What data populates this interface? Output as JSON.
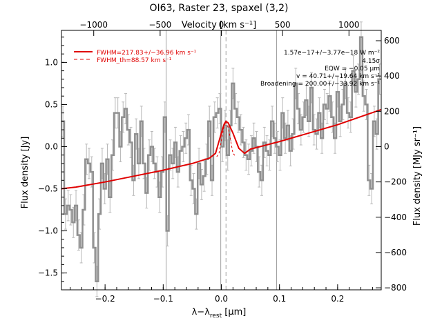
{
  "chart_data": {
    "type": "line",
    "title": "OI63, Raster 23, spaxel (3,2)",
    "xlabel": "λ−λ",
    "xlabel_sub": "rest",
    "xlabel_unit": " [μm]",
    "ylabel": "Flux density [Jy]",
    "top_axis_label": "Velocity [km s⁻¹]",
    "right_axis_label": "Flux density [MJy sr⁻¹]",
    "xlim": [
      -0.275,
      0.275
    ],
    "ylim": [
      -1.7,
      1.38
    ],
    "xticks": [
      -0.2,
      -0.1,
      0.0,
      0.1,
      0.2
    ],
    "xtick_labels": [
      "−0.2",
      "−0.1",
      "0.0",
      "0.1",
      "0.2"
    ],
    "yticks": [
      -1.5,
      -1.0,
      -0.5,
      0.0,
      0.5,
      1.0
    ],
    "ytick_labels": [
      "−1.5",
      "−1.0",
      "−0.5",
      "0.0",
      "0.5",
      "1.0"
    ],
    "top_ticks_um": [
      -0.2195,
      -0.1053,
      0.0,
      0.1053,
      0.2195
    ],
    "top_tick_labels": [
      "−1000",
      "−500",
      "0",
      "500",
      "1000"
    ],
    "right_ticks_y": [
      -1.676,
      -1.257,
      -0.838,
      -0.419,
      0.0,
      0.419,
      0.838,
      1.257
    ],
    "right_tick_labels": [
      "−800",
      "−600",
      "−400",
      "−200",
      "0",
      "200",
      "400",
      "600"
    ],
    "vertical_lines": [
      -0.095,
      -0.001,
      0.095
    ],
    "line_center": 0.008,
    "series": [
      {
        "name": "",
        "style": "step-errorbar",
        "color": "#909090",
        "x": [
          -0.2725,
          -0.268,
          -0.2635,
          -0.259,
          -0.2545,
          -0.25,
          -0.2455,
          -0.241,
          -0.2365,
          -0.232,
          -0.2275,
          -0.223,
          -0.2185,
          -0.214,
          -0.2095,
          -0.205,
          -0.2005,
          -0.196,
          -0.1915,
          -0.187,
          -0.1825,
          -0.178,
          -0.1735,
          -0.169,
          -0.1645,
          -0.16,
          -0.1555,
          -0.151,
          -0.1465,
          -0.142,
          -0.1375,
          -0.133,
          -0.1285,
          -0.124,
          -0.1195,
          -0.115,
          -0.1105,
          -0.106,
          -0.1015,
          -0.097,
          -0.0925,
          -0.088,
          -0.0835,
          -0.079,
          -0.0745,
          -0.07,
          -0.0655,
          -0.061,
          -0.0565,
          -0.052,
          -0.0475,
          -0.043,
          -0.0385,
          -0.034,
          -0.0295,
          -0.025,
          -0.0205,
          -0.016,
          -0.0115,
          -0.007,
          -0.0025,
          0.002,
          0.0065,
          0.011,
          0.0155,
          0.02,
          0.0245,
          0.029,
          0.0335,
          0.038,
          0.0425,
          0.047,
          0.0515,
          0.056,
          0.0605,
          0.065,
          0.0695,
          0.074,
          0.0785,
          0.083,
          0.0875,
          0.092,
          0.0965,
          0.101,
          0.1055,
          0.11,
          0.1145,
          0.119,
          0.1235,
          0.128,
          0.1325,
          0.137,
          0.1415,
          0.146,
          0.1505,
          0.155,
          0.1595,
          0.164,
          0.1685,
          0.173,
          0.1775,
          0.182,
          0.1865,
          0.191,
          0.1955,
          0.2,
          0.2045,
          0.209,
          0.2135,
          0.218,
          0.2225,
          0.227,
          0.2315,
          0.236,
          0.2405,
          0.245,
          0.2495,
          0.254,
          0.2585,
          0.263,
          0.2675,
          0.272
        ],
        "values": [
          0.3,
          -0.8,
          -0.7,
          -0.75,
          -0.9,
          -0.7,
          -1.05,
          -1.2,
          -0.75,
          -0.15,
          -0.2,
          -0.3,
          -1.2,
          -1.6,
          -0.8,
          -0.2,
          -0.5,
          -0.15,
          -0.6,
          -0.1,
          0.4,
          0.4,
          0.0,
          0.35,
          0.45,
          0.2,
          0.05,
          -0.4,
          0.15,
          -0.2,
          0.3,
          -0.2,
          -0.55,
          -0.1,
          0.0,
          -0.2,
          -0.3,
          -0.6,
          -0.3,
          0.35,
          -1.0,
          -0.1,
          -0.2,
          0.05,
          -0.3,
          -0.05,
          0.0,
          0.1,
          0.2,
          -0.4,
          -0.5,
          -0.8,
          -0.2,
          -0.45,
          -0.35,
          -0.15,
          0.3,
          -0.4,
          0.35,
          0.4,
          0.45,
          0.0,
          0.25,
          -0.1,
          0.25,
          0.75,
          0.45,
          0.35,
          0.2,
          0.05,
          -0.1,
          -0.15,
          -0.05,
          0.1,
          0.0,
          -0.3,
          -0.4,
          0.05,
          -0.05,
          -0.1,
          0.3,
          0.1,
          0.0,
          -0.1,
          0.4,
          0.1,
          0.25,
          -0.05,
          0.15,
          0.75,
          0.45,
          0.2,
          0.35,
          0.55,
          0.3,
          0.7,
          0.2,
          0.15,
          0.4,
          0.1,
          0.5,
          0.45,
          0.6,
          0.35,
          0.1,
          0.65,
          0.3,
          0.5,
          0.75,
          0.4,
          0.35,
          0.9,
          0.65,
          0.8,
          1.3,
          0.6,
          0.5,
          -0.4,
          -0.5,
          0.3,
          0.15,
          0.8
        ],
        "errors": [
          0.18,
          0.18,
          0.18,
          0.18,
          0.18,
          0.18,
          0.18,
          0.18,
          0.18,
          0.18,
          0.18,
          0.18,
          0.18,
          0.18,
          0.18,
          0.18,
          0.18,
          0.18,
          0.18,
          0.18,
          0.18,
          0.18,
          0.18,
          0.18,
          0.18,
          0.18,
          0.18,
          0.18,
          0.18,
          0.18,
          0.18,
          0.18,
          0.18,
          0.18,
          0.18,
          0.18,
          0.18,
          0.18,
          0.18,
          0.18,
          0.18,
          0.18,
          0.18,
          0.18,
          0.18,
          0.18,
          0.18,
          0.18,
          0.18,
          0.18,
          0.18,
          0.18,
          0.18,
          0.18,
          0.18,
          0.18,
          0.18,
          0.18,
          0.18,
          0.18,
          0.18,
          0.18,
          0.18,
          0.18,
          0.18,
          0.18,
          0.18,
          0.18,
          0.18,
          0.18,
          0.18,
          0.18,
          0.18,
          0.18,
          0.18,
          0.18,
          0.18,
          0.18,
          0.18,
          0.18,
          0.18,
          0.18,
          0.18,
          0.18,
          0.18,
          0.18,
          0.18,
          0.18,
          0.18,
          0.18,
          0.18,
          0.18,
          0.18,
          0.18,
          0.18,
          0.18,
          0.18,
          0.18,
          0.18,
          0.18,
          0.18,
          0.18,
          0.18,
          0.18,
          0.18,
          0.18,
          0.18,
          0.18,
          0.18,
          0.18,
          0.18,
          0.18,
          0.18,
          0.18,
          0.18,
          0.18,
          0.18,
          0.18,
          0.18,
          0.18,
          0.18,
          0.18
        ]
      },
      {
        "name": "FWHM=217.83+/−36.96 km s⁻¹",
        "style": "solid",
        "color": "#e00000",
        "x": [
          -0.275,
          -0.25,
          -0.2,
          -0.15,
          -0.1,
          -0.05,
          -0.02,
          -0.01,
          0.0,
          0.005,
          0.008,
          0.012,
          0.02,
          0.03,
          0.04,
          0.05,
          0.1,
          0.15,
          0.2,
          0.25,
          0.275
        ],
        "values": [
          -0.5,
          -0.48,
          -0.42,
          -0.35,
          -0.28,
          -0.2,
          -0.135,
          -0.08,
          0.16,
          0.27,
          0.3,
          0.28,
          0.16,
          -0.02,
          -0.08,
          -0.03,
          0.06,
          0.16,
          0.26,
          0.38,
          0.44
        ]
      },
      {
        "name": "FWHM_th=88.57 km s⁻¹",
        "style": "dashed",
        "color": "#e00000",
        "x": [
          -0.008,
          -0.004,
          0.0,
          0.004,
          0.008,
          0.012,
          0.016,
          0.02,
          0.024
        ],
        "values": [
          -0.12,
          -0.08,
          0.07,
          0.22,
          0.3,
          0.22,
          0.07,
          -0.08,
          -0.11
        ]
      }
    ],
    "annotations": [
      "1.57e−17+/−3.77e−18 W m⁻²",
      "4.15σ",
      "EQW = −0.05 μm",
      "v = 40.71+/−19.64 km s⁻¹",
      "Broadening = 200.00+/−33.92 km s⁻¹"
    ],
    "legend_position": "top-left",
    "grid": false
  }
}
